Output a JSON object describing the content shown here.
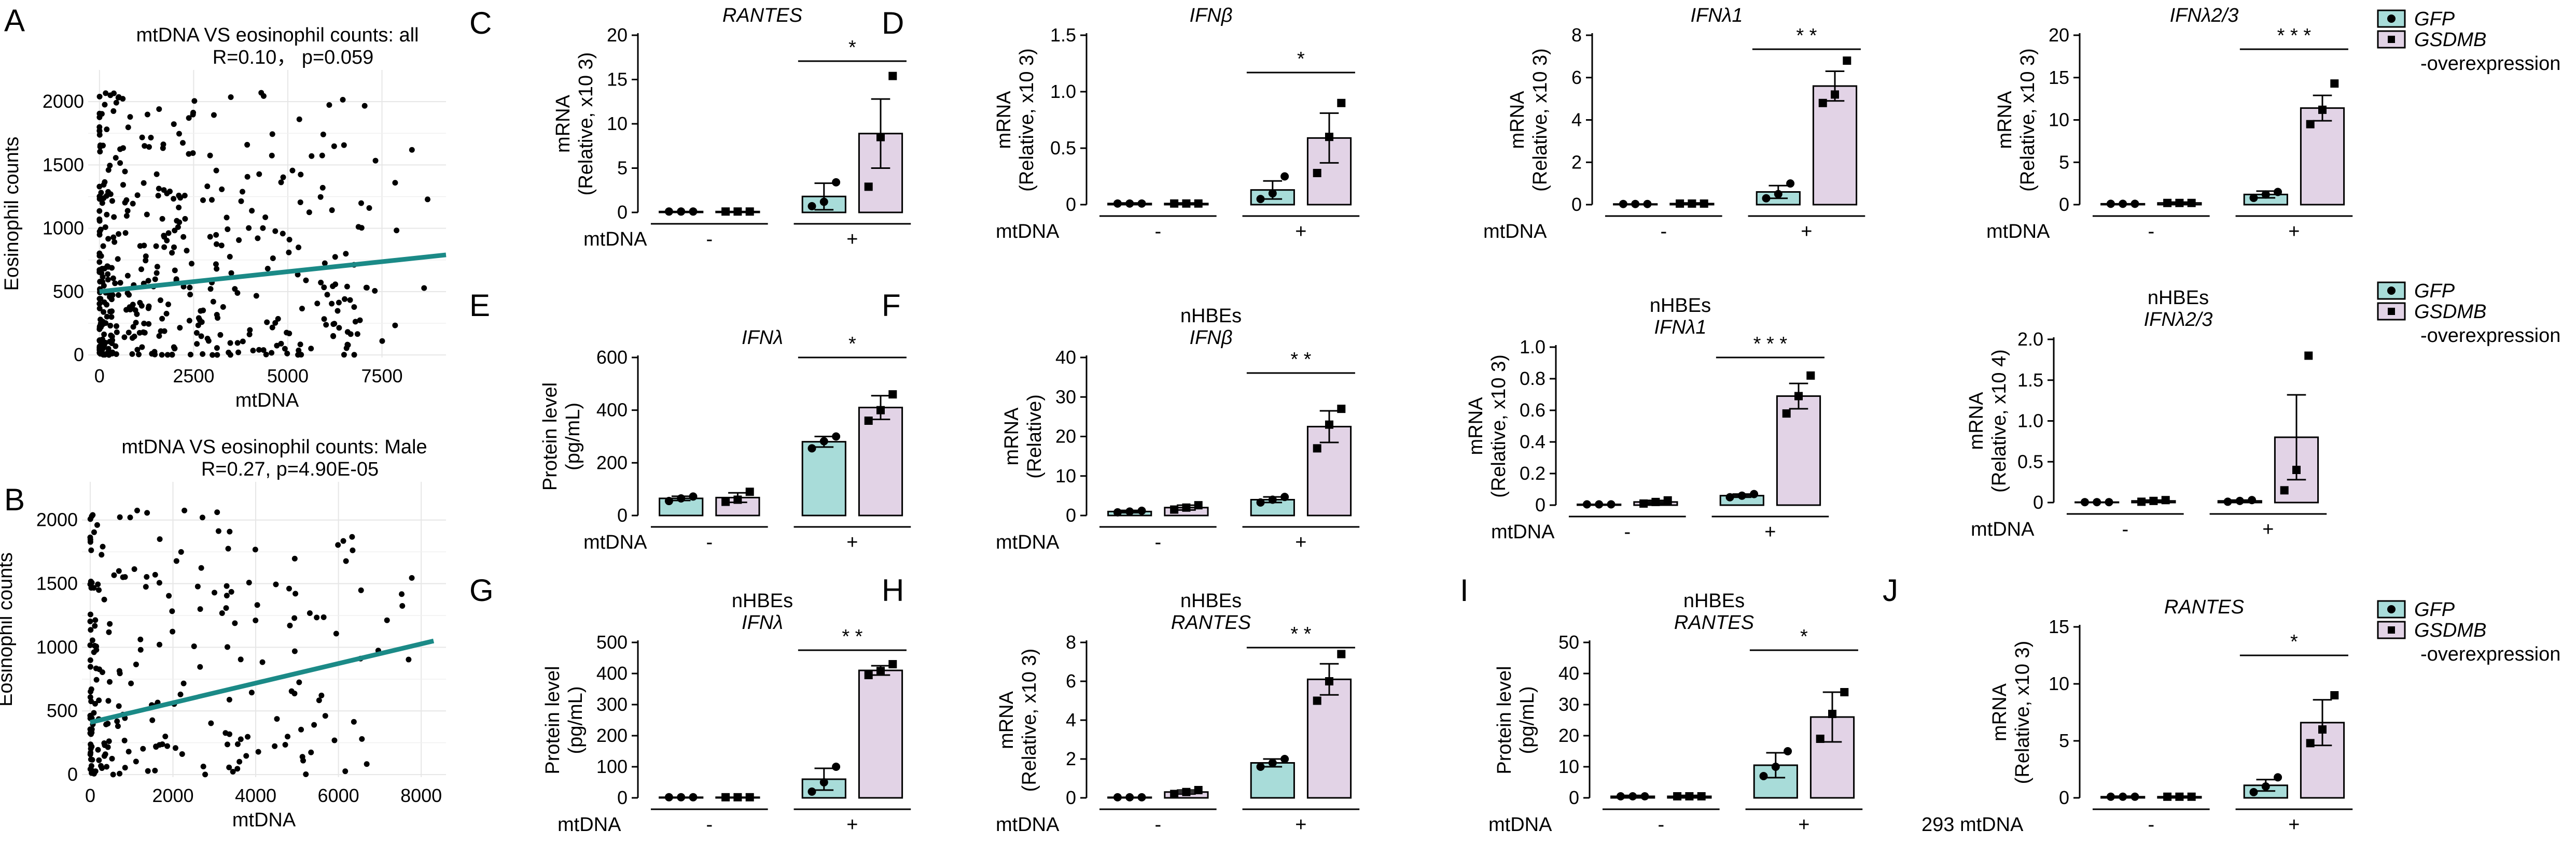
{
  "figure": {
    "legend": [
      {
        "name": "GFP",
        "color": "#a8dcd9"
      },
      {
        "name": "GSDMB",
        "color": "#e2d3e6"
      },
      {
        "suffix": "-overexpression"
      }
    ]
  },
  "colors": {
    "regression": "#1b8a87",
    "gfp": "#a8dcd9",
    "gsdmb": "#e2d3e6",
    "points": "#000000"
  },
  "chart_data": [
    {
      "panel": "A",
      "type": "scatter",
      "title": "mtDNA VS eosinophil counts: all",
      "subtitle": "R=0.10， p=0.059",
      "xlabel": "mtDNA",
      "ylabel": "Eosinophil counts",
      "xlim": [
        -300,
        9200
      ],
      "ylim": [
        -20,
        2250
      ],
      "xticks": [
        0,
        2500,
        5000,
        7500
      ],
      "xtick_labels": [
        "0",
        "2500",
        "5000",
        "7500"
      ],
      "yticks": [
        0,
        500,
        1000,
        1500,
        2000
      ],
      "ytick_labels": [
        "0",
        "500",
        "1000",
        "1500",
        "2000"
      ],
      "grid": true,
      "regression": {
        "x": [
          0,
          9200
        ],
        "y": [
          500,
          790
        ]
      },
      "n_points": 430
    },
    {
      "panel": "B",
      "type": "scatter",
      "title": "mtDNA VS eosinophil counts: Male",
      "subtitle": "R=0.27, p=4.90E-05",
      "xlabel": "mtDNA",
      "ylabel": "Eosinophil counts",
      "xlim": [
        -200,
        8600
      ],
      "ylim": [
        -20,
        2300
      ],
      "xticks": [
        0,
        2000,
        4000,
        6000,
        8000
      ],
      "xtick_labels": [
        "0",
        "2000",
        "4000",
        "6000",
        "8000"
      ],
      "yticks": [
        0,
        500,
        1000,
        1500,
        2000
      ],
      "ytick_labels": [
        "0",
        "500",
        "1000",
        "1500",
        "2000"
      ],
      "grid": true,
      "regression": {
        "x": [
          0,
          8300
        ],
        "y": [
          410,
          1050
        ]
      },
      "n_points": 230
    },
    {
      "panel": "C",
      "type": "bar",
      "gene": "RANTES",
      "ylabel": [
        "mRNA",
        "(Relative, x10 3)"
      ],
      "ylim": [
        0,
        20
      ],
      "yticks": [
        0,
        5,
        10,
        15,
        20
      ],
      "ytick_labels": [
        "0",
        "5",
        "10",
        "15",
        "20"
      ],
      "treatment": "mtDNA",
      "groups": [
        "-",
        "+"
      ],
      "sig": "*",
      "series": [
        {
          "name": "GFP",
          "values": [
            0.1,
            1.8
          ],
          "sem": [
            0.05,
            1.5
          ],
          "points": [
            [
              0.1,
              0.1,
              0.1
            ],
            [
              0.7,
              1.2,
              3.4
            ]
          ]
        },
        {
          "name": "GSDMB",
          "values": [
            0.1,
            8.9
          ],
          "sem": [
            0.05,
            3.9
          ],
          "points": [
            [
              0.1,
              0.1,
              0.1
            ],
            [
              2.9,
              8.5,
              15.4
            ]
          ]
        }
      ]
    },
    {
      "panel": "D",
      "type": "bar",
      "gene": "IFNβ",
      "ylabel": [
        "mRNA",
        "(Relative, x10 3)"
      ],
      "ylim": [
        0,
        1.5
      ],
      "yticks": [
        0,
        0.5,
        1.0,
        1.5
      ],
      "ytick_labels": [
        "0",
        "0.5",
        "1.0",
        "1.5"
      ],
      "treatment": "mtDNA",
      "groups": [
        "-",
        "+"
      ],
      "sig": "*",
      "series": [
        {
          "name": "GFP",
          "values": [
            0.01,
            0.13
          ],
          "sem": [
            0.005,
            0.08
          ],
          "points": [
            [
              0.01,
              0.01,
              0.01
            ],
            [
              0.05,
              0.1,
              0.25
            ]
          ]
        },
        {
          "name": "GSDMB",
          "values": [
            0.01,
            0.59
          ],
          "sem": [
            0.005,
            0.22
          ],
          "points": [
            [
              0.01,
              0.01,
              0.01
            ],
            [
              0.28,
              0.6,
              0.9
            ]
          ]
        }
      ]
    },
    {
      "panel": "D2",
      "type": "bar",
      "gene": "IFNλ1",
      "ylabel": [
        "mRNA",
        "(Relative, x10 3)"
      ],
      "ylim": [
        0,
        8
      ],
      "yticks": [
        0,
        2,
        4,
        6,
        8
      ],
      "ytick_labels": [
        "0",
        "2",
        "4",
        "6",
        "8"
      ],
      "treatment": "mtDNA",
      "groups": [
        "-",
        "+"
      ],
      "sig": "* *",
      "series": [
        {
          "name": "GFP",
          "values": [
            0.03,
            0.6
          ],
          "sem": [
            0.02,
            0.3
          ],
          "points": [
            [
              0.03,
              0.03,
              0.03
            ],
            [
              0.3,
              0.5,
              1.0
            ]
          ]
        },
        {
          "name": "GSDMB",
          "values": [
            0.05,
            5.6
          ],
          "sem": [
            0.03,
            0.7
          ],
          "points": [
            [
              0.05,
              0.05,
              0.05
            ],
            [
              4.8,
              5.2,
              6.8
            ]
          ]
        }
      ]
    },
    {
      "panel": "D3",
      "type": "bar",
      "gene": "IFNλ2/3",
      "ylabel": [
        "mRNA",
        "(Relative, x10 3)"
      ],
      "ylim": [
        0,
        20
      ],
      "yticks": [
        0,
        5,
        10,
        15,
        20
      ],
      "ytick_labels": [
        "0",
        "5",
        "10",
        "15",
        "20"
      ],
      "treatment": "mtDNA",
      "groups": [
        "-",
        "+"
      ],
      "sig": "* * *",
      "series": [
        {
          "name": "GFP",
          "values": [
            0.1,
            1.2
          ],
          "sem": [
            0.05,
            0.4
          ],
          "points": [
            [
              0.1,
              0.1,
              0.1
            ],
            [
              0.8,
              1.2,
              1.5
            ]
          ]
        },
        {
          "name": "GSDMB",
          "values": [
            0.2,
            11.4
          ],
          "sem": [
            0.1,
            1.5
          ],
          "points": [
            [
              0.2,
              0.2,
              0.2
            ],
            [
              9.5,
              11.2,
              14.3
            ]
          ]
        }
      ]
    },
    {
      "panel": "E",
      "type": "bar",
      "gene": "IFNλ",
      "ylabel": [
        "Protein level",
        "(pg/mL)"
      ],
      "ylim": [
        0,
        600
      ],
      "yticks": [
        0,
        200,
        400,
        600
      ],
      "ytick_labels": [
        "0",
        "200",
        "400",
        "600"
      ],
      "treatment": "mtDNA",
      "groups": [
        "-",
        "+"
      ],
      "sig": "*",
      "series": [
        {
          "name": "GFP",
          "values": [
            65,
            280
          ],
          "sem": [
            8,
            20
          ],
          "points": [
            [
              55,
              65,
              72
            ],
            [
              255,
              282,
              300
            ]
          ]
        },
        {
          "name": "GSDMB",
          "values": [
            68,
            410
          ],
          "sem": [
            18,
            45
          ],
          "points": [
            [
              52,
              60,
              90
            ],
            [
              360,
              400,
              460
            ]
          ]
        }
      ]
    },
    {
      "panel": "F",
      "type": "bar",
      "subtitle": "nHBEs",
      "gene": "IFNβ",
      "ylabel": [
        "mRNA",
        "(Relative)"
      ],
      "ylim": [
        0,
        40
      ],
      "yticks": [
        0,
        10,
        20,
        30,
        40
      ],
      "ytick_labels": [
        "0",
        "10",
        "20",
        "30",
        "40"
      ],
      "treatment": "mtDNA",
      "groups": [
        "-",
        "+"
      ],
      "sig": "* *",
      "series": [
        {
          "name": "GFP",
          "values": [
            1.0,
            4.0
          ],
          "sem": [
            0.3,
            0.7
          ],
          "points": [
            [
              0.8,
              1.0,
              1.2
            ],
            [
              3.3,
              4.0,
              4.7
            ]
          ]
        },
        {
          "name": "GSDMB",
          "values": [
            2.0,
            22.5
          ],
          "sem": [
            0.6,
            4.0
          ],
          "points": [
            [
              1.5,
              2.0,
              2.6
            ],
            [
              17,
              23,
              27
            ]
          ]
        }
      ]
    },
    {
      "panel": "F2",
      "type": "bar",
      "subtitle": "nHBEs",
      "gene": "IFNλ1",
      "ylabel": [
        "mRNA",
        "(Relative, x10 3)"
      ],
      "ylim": [
        0,
        1.0
      ],
      "yticks": [
        0,
        0.2,
        0.4,
        0.6,
        0.8,
        1.0
      ],
      "ytick_labels": [
        "0",
        "0.2",
        "0.4",
        "0.6",
        "0.8",
        "1.0"
      ],
      "treatment": "mtDNA",
      "groups": [
        "-",
        "+"
      ],
      "sig": "* * *",
      "series": [
        {
          "name": "GFP",
          "values": [
            0.005,
            0.06
          ],
          "sem": [
            0.003,
            0.01
          ],
          "points": [
            [
              0.005,
              0.005,
              0.005
            ],
            [
              0.05,
              0.06,
              0.07
            ]
          ]
        },
        {
          "name": "GSDMB",
          "values": [
            0.02,
            0.69
          ],
          "sem": [
            0.01,
            0.08
          ],
          "points": [
            [
              0.01,
              0.02,
              0.03
            ],
            [
              0.58,
              0.69,
              0.82
            ]
          ]
        }
      ]
    },
    {
      "panel": "F3",
      "type": "bar",
      "subtitle": "nHBEs",
      "gene": "IFNλ2/3",
      "ylabel": [
        "mRNA",
        "(Relative, x10 4)"
      ],
      "ylim": [
        0,
        2.0
      ],
      "yticks": [
        0,
        0.5,
        1.0,
        1.5,
        2.0
      ],
      "ytick_labels": [
        "0",
        "0.5",
        "1.0",
        "1.5",
        "2.0"
      ],
      "treatment": "mtDNA",
      "groups": [
        "-",
        "+"
      ],
      "sig": "",
      "series": [
        {
          "name": "GFP",
          "values": [
            0.005,
            0.02
          ],
          "sem": [
            0.003,
            0.01
          ],
          "points": [
            [
              0.005,
              0.005,
              0.005
            ],
            [
              0.01,
              0.02,
              0.03
            ]
          ]
        },
        {
          "name": "GSDMB",
          "values": [
            0.02,
            0.8
          ],
          "sem": [
            0.01,
            0.52
          ],
          "points": [
            [
              0.01,
              0.02,
              0.03
            ],
            [
              0.15,
              0.4,
              1.8
            ]
          ]
        }
      ]
    },
    {
      "panel": "G",
      "type": "bar",
      "subtitle": "nHBEs",
      "gene": "IFNλ",
      "ylabel": [
        "Protein level",
        "(pg/mL)"
      ],
      "ylim": [
        0,
        500
      ],
      "yticks": [
        0,
        100,
        200,
        300,
        400,
        500
      ],
      "ytick_labels": [
        "0",
        "100",
        "200",
        "300",
        "400",
        "500"
      ],
      "treatment": "mtDNA",
      "groups": [
        "-",
        "+"
      ],
      "sig": "* *",
      "series": [
        {
          "name": "GFP",
          "values": [
            2,
            60
          ],
          "sem": [
            1,
            35
          ],
          "points": [
            [
              2,
              2,
              2
            ],
            [
              20,
              50,
              100
            ]
          ]
        },
        {
          "name": "GSDMB",
          "values": [
            2,
            410
          ],
          "sem": [
            1,
            15
          ],
          "points": [
            [
              2,
              2,
              2
            ],
            [
              395,
              408,
              430
            ]
          ]
        }
      ]
    },
    {
      "panel": "H",
      "type": "bar",
      "subtitle": "nHBEs",
      "gene": "RANTES",
      "ylabel": [
        "mRNA",
        "(Relative, x10 3)"
      ],
      "ylim": [
        0,
        8
      ],
      "yticks": [
        0,
        2,
        4,
        6,
        8
      ],
      "ytick_labels": [
        "0",
        "2",
        "4",
        "6",
        "8"
      ],
      "treatment": "mtDNA",
      "groups": [
        "-",
        "+"
      ],
      "sig": "* *",
      "series": [
        {
          "name": "GFP",
          "values": [
            0.03,
            1.8
          ],
          "sem": [
            0.02,
            0.2
          ],
          "points": [
            [
              0.03,
              0.03,
              0.03
            ],
            [
              1.6,
              1.8,
              2.0
            ]
          ]
        },
        {
          "name": "GSDMB",
          "values": [
            0.3,
            6.1
          ],
          "sem": [
            0.1,
            0.8
          ],
          "points": [
            [
              0.2,
              0.3,
              0.4
            ],
            [
              5.0,
              6.0,
              7.4
            ]
          ]
        }
      ]
    },
    {
      "panel": "I",
      "type": "bar",
      "subtitle": "nHBEs",
      "gene": "RANTES",
      "ylabel": [
        "Protein level",
        "(pg/mL)"
      ],
      "ylim": [
        0,
        50
      ],
      "yticks": [
        0,
        10,
        20,
        30,
        40,
        50
      ],
      "ytick_labels": [
        "0",
        "10",
        "20",
        "30",
        "40",
        "50"
      ],
      "treatment": "mtDNA",
      "groups": [
        "-",
        "+"
      ],
      "sig": "*",
      "series": [
        {
          "name": "GFP",
          "values": [
            0.5,
            10.5
          ],
          "sem": [
            0.3,
            4.0
          ],
          "points": [
            [
              0.5,
              0.5,
              0.5
            ],
            [
              7,
              10,
              15
            ]
          ]
        },
        {
          "name": "GSDMB",
          "values": [
            0.5,
            26
          ],
          "sem": [
            0.3,
            8
          ],
          "points": [
            [
              0.5,
              0.5,
              0.5
            ],
            [
              19,
              27,
              34
            ]
          ]
        }
      ]
    },
    {
      "panel": "J",
      "type": "bar",
      "gene": "RANTES",
      "ylabel": [
        "mRNA",
        "(Relative, x10 3)"
      ],
      "ylim": [
        0,
        15
      ],
      "yticks": [
        0,
        5,
        10,
        15
      ],
      "ytick_labels": [
        "0",
        "5",
        "10",
        "15"
      ],
      "treatment": "293 mtDNA",
      "groups": [
        "-",
        "+"
      ],
      "sig": "*",
      "series": [
        {
          "name": "GFP",
          "values": [
            0.1,
            1.1
          ],
          "sem": [
            0.05,
            0.5
          ],
          "points": [
            [
              0.1,
              0.1,
              0.1
            ],
            [
              0.5,
              1.0,
              1.8
            ]
          ]
        },
        {
          "name": "GSDMB",
          "values": [
            0.1,
            6.6
          ],
          "sem": [
            0.05,
            2.0
          ],
          "points": [
            [
              0.1,
              0.1,
              0.1
            ],
            [
              4.8,
              6.0,
              9.0
            ]
          ]
        }
      ]
    }
  ]
}
